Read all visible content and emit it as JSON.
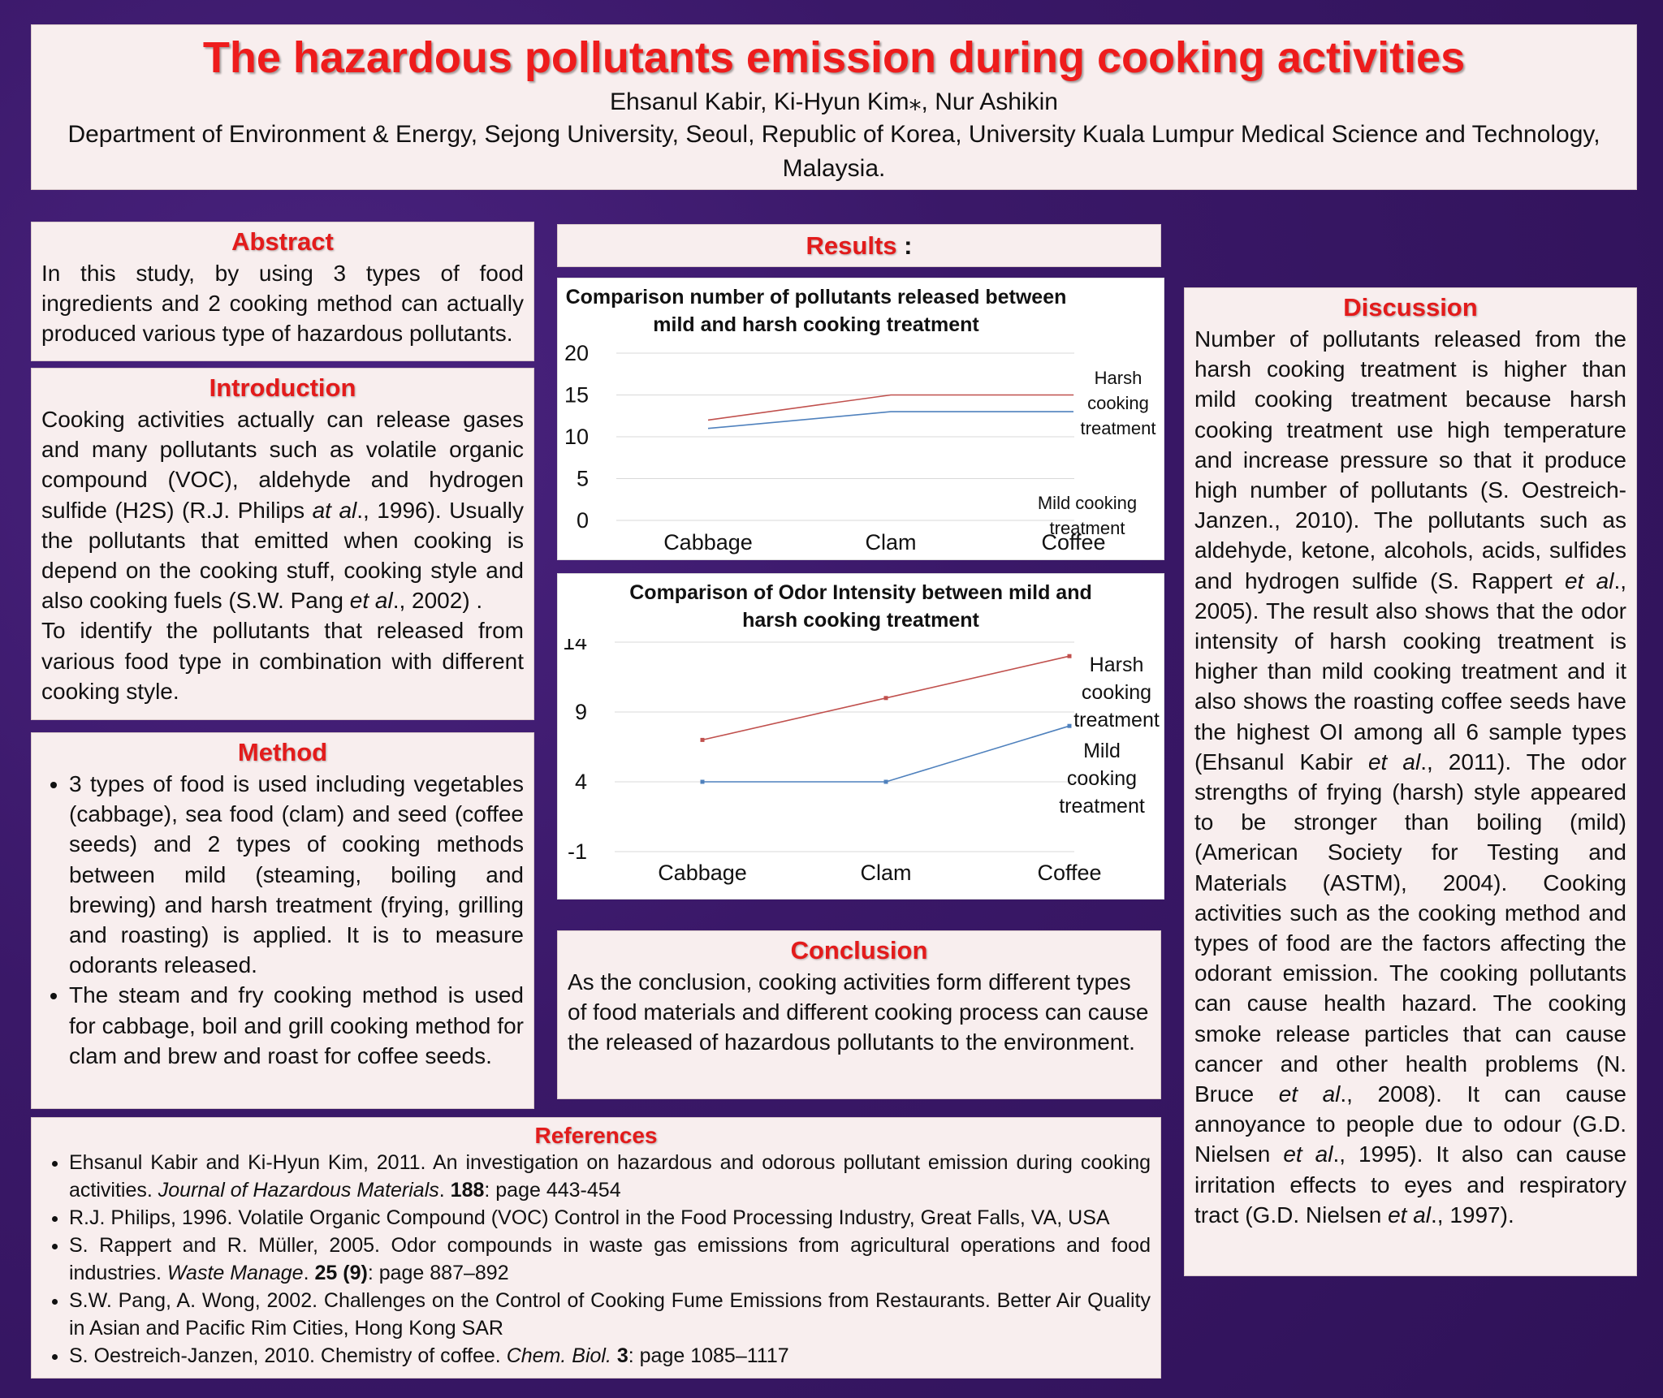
{
  "header": {
    "title": "The hazardous pollutants emission during cooking activities",
    "authors": "Ehsanul Kabir, Ki-Hyun Kim⁎, Nur Ashikin",
    "affiliation": "Department of Environment & Energy, Sejong University, Seoul, Republic of Korea, University Kuala Lumpur Medical Science and Technology, Malaysia."
  },
  "abstract": {
    "heading": "Abstract",
    "text": "In this study, by using 3 types of food ingredients and 2 cooking method can actually produced various type of hazardous pollutants."
  },
  "introduction": {
    "heading": "Introduction",
    "p1_part1": "Cooking activities actually can release gases and many pollutants  such as volatile organic compound (VOC), aldehyde and hydrogen sulfide (H2S) (R.J. Philips ",
    "p1_em1": "at al",
    "p1_part2": "., 1996). Usually the pollutants that emitted when cooking is depend on the cooking stuff, cooking style and also cooking fuels (S.W. Pang ",
    "p1_em2": "et al",
    "p1_part3": "., 2002) .",
    "p2": "To identify the  pollutants that released from various food type  in  combination with different cooking style."
  },
  "method": {
    "heading": "Method",
    "bullets": [
      "3 types of food is used including vegetables (cabbage), sea food (clam) and seed (coffee seeds) and 2 types of cooking methods between mild (steaming, boiling and brewing) and harsh treatment (frying, grilling and roasting) is applied. It is to measure odorants released.",
      "The steam and fry cooking method is used for cabbage, boil and grill cooking method for clam and  brew and roast for coffee seeds."
    ]
  },
  "results": {
    "heading": "Results",
    "suffix": " :"
  },
  "chart_data": [
    {
      "type": "line",
      "title": "Comparison number of pollutants released between mild and harsh cooking treatment",
      "categories": [
        "Cabbage",
        "Clam",
        "Coffee"
      ],
      "series": [
        {
          "name": "Harsh cooking treatment",
          "values": [
            12,
            15,
            15
          ],
          "color": "#c0504d"
        },
        {
          "name": "Mild cooking treatment",
          "values": [
            11,
            13,
            13
          ],
          "color": "#4f81bd"
        }
      ],
      "ylim": [
        0,
        20
      ],
      "yticks": [
        "0",
        "5",
        "10",
        "15",
        "20"
      ],
      "grid": true,
      "legend": "right"
    },
    {
      "type": "line",
      "title": "Comparison of Odor Intensity between mild and harsh cooking treatment",
      "categories": [
        "Cabbage",
        "Clam",
        "Coffee"
      ],
      "series": [
        {
          "name": "Harsh cooking treatment",
          "values": [
            7,
            10,
            13
          ],
          "color": "#c0504d"
        },
        {
          "name": "Mild cooking treatment",
          "values": [
            4,
            4,
            8
          ],
          "color": "#4f81bd"
        }
      ],
      "ylim": [
        -1,
        14
      ],
      "yticks": [
        "-1",
        "4",
        "9",
        "14"
      ],
      "grid": true,
      "legend": "right"
    }
  ],
  "conclusion": {
    "heading": "Conclusion",
    "text": "As the conclusion,  cooking activities form different types of food materials and different cooking process can cause the released of hazardous pollutants to the environment."
  },
  "references": {
    "heading": "References",
    "r1a": "Ehsanul Kabir and Ki-Hyun Kim, 2011. An investigation on hazardous and odorous pollutant emission during cooking activities. ",
    "r1j": "Journal of Hazardous Materials",
    "r1b": ". ",
    "r1v": "188",
    "r1c": ": page 443-454",
    "r2": "R.J. Philips, 1996. Volatile Organic Compound (VOC) Control in the Food Processing Industry, Great Falls, VA, USA",
    "r3a": "S. Rappert and R. Müller, 2005. Odor compounds in waste gas emissions from agricultural operations and food industries. ",
    "r3j": "Waste Manage",
    "r3b": ". ",
    "r3v": "25 (9)",
    "r3c": ": page 887–892",
    "r4": "S.W. Pang, A. Wong, 2002. Challenges on the Control of Cooking Fume Emissions from Restaurants. Better Air Quality in Asian and Pacific Rim Cities, Hong Kong SAR",
    "r5a": "S. Oestreich-Janzen, 2010. Chemistry of coffee. ",
    "r5j": "Chem. Biol.",
    "r5b": " ",
    "r5v": "3",
    "r5c": ": page 1085–1117"
  },
  "discussion": {
    "heading": "Discussion",
    "t1": "Number of pollutants released from the harsh cooking treatment is higher than mild cooking treatment because harsh cooking treatment use high temperature and increase pressure so that it produce high number of pollutants (S. Oestreich-Janzen., 2010). The pollutants such as aldehyde, ketone, alcohols, acids, sulfides and hydrogen sulfide (S. Rappert ",
    "e1": "et al",
    "t2": "., 2005). The result also shows that the odor intensity of harsh cooking treatment is higher than mild cooking treatment and it also shows the roasting coffee seeds have the highest OI among all 6 sample types (Ehsanul Kabir ",
    "e2": "et al",
    "t3": "., 2011). The odor strengths of frying (harsh) style appeared to be stronger than boiling (mild) (American Society for Testing and Materials (ASTM), 2004). Cooking activities such as the cooking method and types of food are the factors  affecting the odorant emission. The cooking pollutants can  cause health hazard. The cooking smoke release particles that can cause cancer and other health problems (N. Bruce ",
    "e3": "et al",
    "t4": "., 2008). It can cause annoyance to people due to odour (G.D. Nielsen ",
    "e4": "et al",
    "t5": "., 1995). It also can cause irritation effects to eyes and respiratory tract (G.D. Nielsen ",
    "e5": "et al",
    "t6": "., 1997)."
  }
}
